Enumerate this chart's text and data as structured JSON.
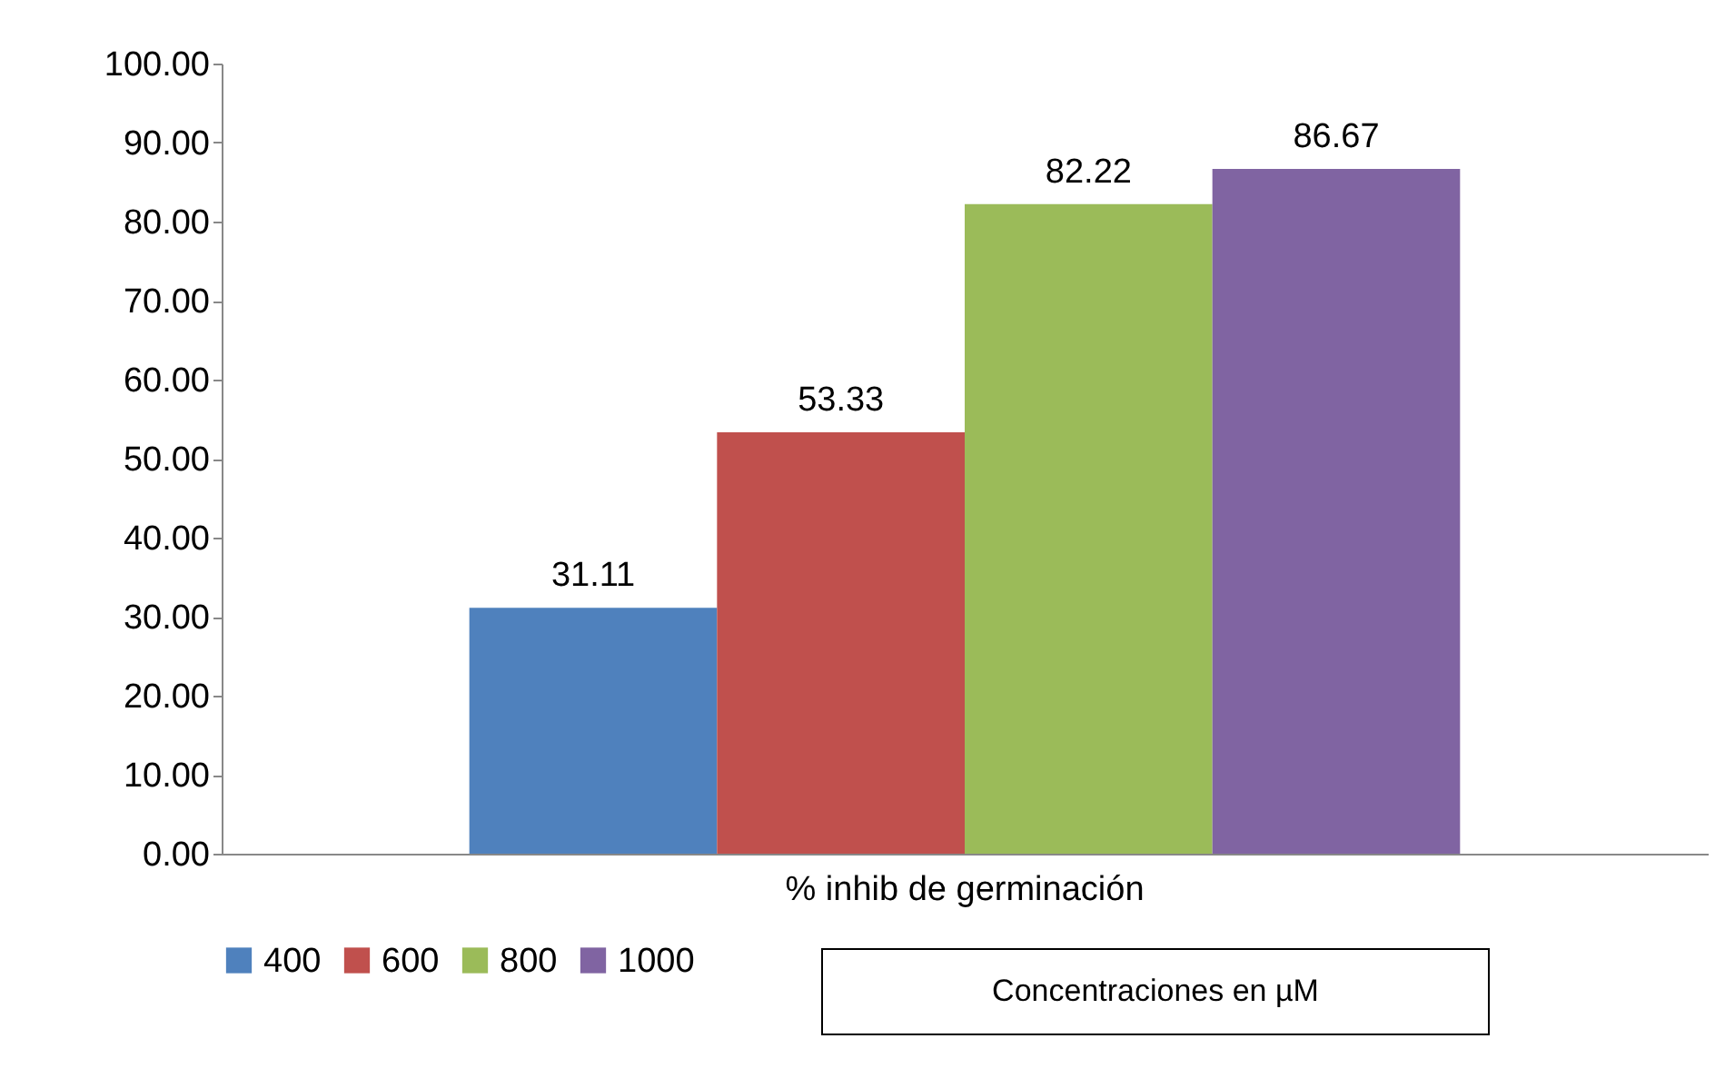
{
  "chart_data": {
    "type": "bar",
    "categories": [
      "% inhib de germinación"
    ],
    "series": [
      {
        "name": "400",
        "color": "#4f81bd",
        "values": [
          31.11
        ]
      },
      {
        "name": "600",
        "color": "#c0504d",
        "values": [
          53.33
        ]
      },
      {
        "name": "800",
        "color": "#9bbb59",
        "values": [
          82.22
        ]
      },
      {
        "name": "1000",
        "color": "#8064a2",
        "values": [
          86.67
        ]
      }
    ],
    "ylim": [
      0,
      100
    ],
    "yticks": [
      {
        "value": 0,
        "label": "0.00"
      },
      {
        "value": 10,
        "label": "10.00"
      },
      {
        "value": 20,
        "label": "20.00"
      },
      {
        "value": 30,
        "label": "30.00"
      },
      {
        "value": 40,
        "label": "40.00"
      },
      {
        "value": 50,
        "label": "50.00"
      },
      {
        "value": 60,
        "label": "60.00"
      },
      {
        "value": 70,
        "label": "70.00"
      },
      {
        "value": 80,
        "label": "80.00"
      },
      {
        "value": 90,
        "label": "90.00"
      },
      {
        "value": 100,
        "label": "100.00"
      }
    ],
    "data_labels": true,
    "grid": false,
    "legend": "bottom",
    "annotations": [
      "Concentraciones en µM"
    ]
  }
}
